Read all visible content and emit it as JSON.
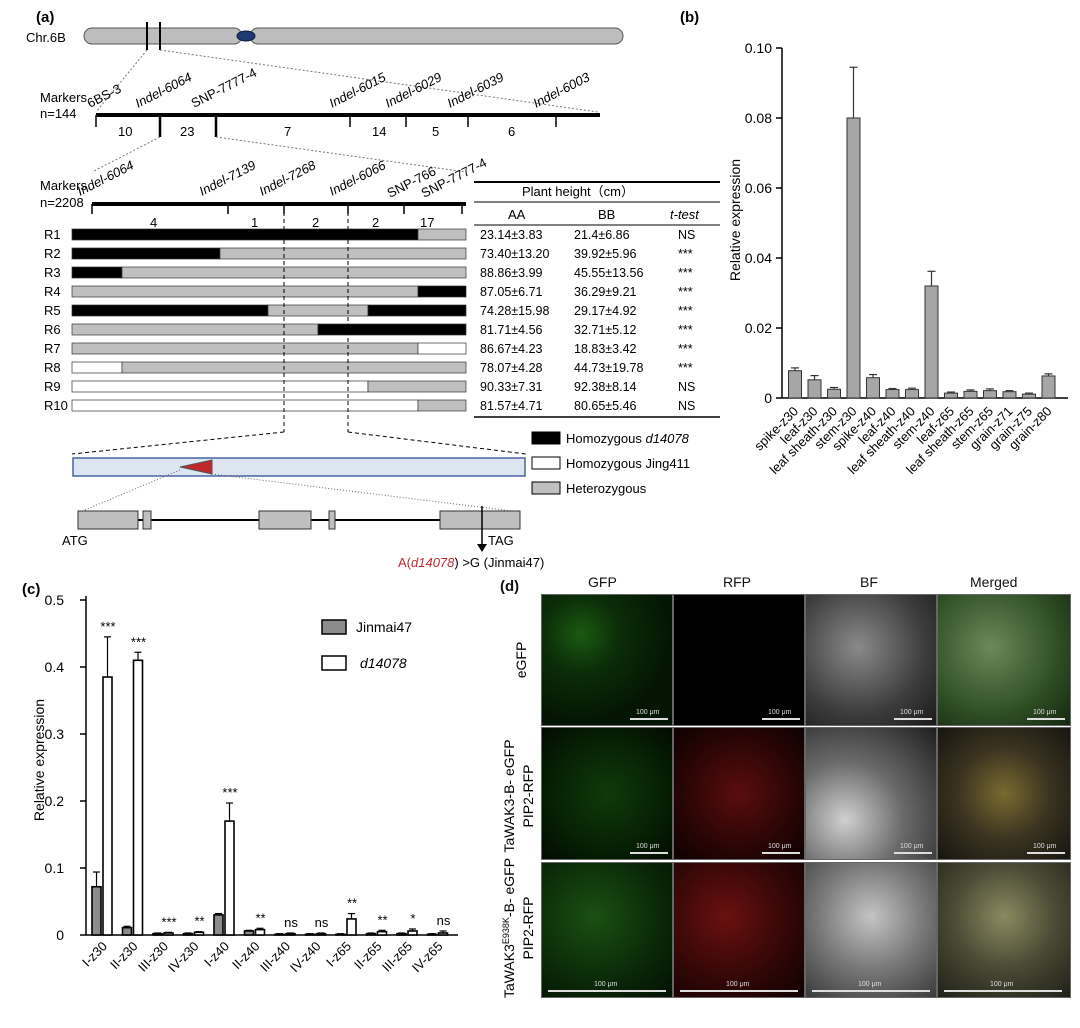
{
  "panel_a": {
    "label": "(a)",
    "chromosome": "Chr.6B",
    "map1": {
      "title": "Markers",
      "n": "n=144",
      "markers": [
        "6BS-3",
        "Indel-6064",
        "SNP-7777-4",
        "Indel-6015",
        "Indel-6029",
        "Indel-6039",
        "Indel-6003"
      ],
      "intervals": [
        "10",
        "23",
        "7",
        "14",
        "5",
        "6"
      ]
    },
    "map2": {
      "title": "Markers",
      "n": "n=2208",
      "markers": [
        "Indel-6064",
        "Indel-7139",
        "Indel-7268",
        "Indel-6066",
        "SNP-766",
        "SNP-7777-4"
      ],
      "intervals": [
        "4",
        "1",
        "2",
        "2",
        "17"
      ]
    },
    "table": {
      "title": "Plant height（cm）",
      "headers": [
        "AA",
        "BB",
        "t-test"
      ],
      "rows": [
        {
          "id": "R1",
          "aa": "23.14±3.83",
          "bb": "21.4±6.86",
          "t": "NS"
        },
        {
          "id": "R2",
          "aa": "73.40±13.20",
          "bb": "39.92±5.96",
          "t": "***"
        },
        {
          "id": "R3",
          "aa": "88.86±3.99",
          "bb": "45.55±13.56",
          "t": "***"
        },
        {
          "id": "R4",
          "aa": "87.05±6.71",
          "bb": "36.29±9.21",
          "t": "***"
        },
        {
          "id": "R5",
          "aa": "74.28±15.98",
          "bb": "29.17±4.92",
          "t": "***"
        },
        {
          "id": "R6",
          "aa": "81.71±4.56",
          "bb": "32.71±5.12",
          "t": "***"
        },
        {
          "id": "R7",
          "aa": "86.67±4.23",
          "bb": "18.83±3.42",
          "t": "***"
        },
        {
          "id": "R8",
          "aa": "78.07±4.28",
          "bb": "44.73±19.78",
          "t": "***"
        },
        {
          "id": "R9",
          "aa": "90.33±7.31",
          "bb": "92.38±8.14",
          "t": "NS"
        },
        {
          "id": "R10",
          "aa": "81.57±4.71",
          "bb": "80.65±5.46",
          "t": "NS"
        }
      ]
    },
    "legend": [
      "Homozygous ",
      "d14078",
      "Homozygous Jing411",
      "Heterozygous"
    ],
    "gene": {
      "atg": "ATG",
      "tag": "TAG",
      "mut_a": "A(",
      "mut_name": "d14078",
      "mut_rest": ") >G (Jinmai47)"
    },
    "colors": {
      "homozygous_d14078": "#000000",
      "homozygous_jing411": "#ffffff",
      "heterozygous": "#bfbfbf",
      "mutation": "#c0282d"
    }
  },
  "panel_b": {
    "label": "(b)"
  },
  "panel_c": {
    "label": "(c)",
    "legend": [
      "Jinmai47",
      "d14078"
    ],
    "significance": [
      "***",
      "***",
      "***",
      "**",
      "***",
      "**",
      "ns",
      "ns",
      "**",
      "**",
      "*",
      "ns"
    ]
  },
  "panel_d": {
    "label": "(d)",
    "columns": [
      "GFP",
      "RFP",
      "BF",
      "Merged"
    ],
    "rows": [
      "eGFP",
      "TaWAK3-B- eGFP",
      "PIP2-RFP",
      "TaWAK3",
      "E938K",
      "-B- eGFP",
      "PIP2-RFP"
    ],
    "scale_bar": "100 μm"
  },
  "chart_data": [
    {
      "type": "bar",
      "panel": "b",
      "categories": [
        "spike-z30",
        "leaf-z30",
        "leaf sheath-z30",
        "stem-z30",
        "spike-z40",
        "leaf-z40",
        "leaf sheath-z40",
        "stem-z40",
        "leaf-z65",
        "leaf sheath-z65",
        "stem-z65",
        "grain-z71",
        "grain-z75",
        "grain-z80"
      ],
      "values": [
        0.0078,
        0.0052,
        0.0025,
        0.08,
        0.0058,
        0.0024,
        0.0024,
        0.032,
        0.0014,
        0.0019,
        0.0021,
        0.0018,
        0.0011,
        0.0063
      ],
      "errors": [
        0.0008,
        0.0012,
        0.0005,
        0.0145,
        0.0009,
        0.0003,
        0.0004,
        0.0042,
        0.0003,
        0.0004,
        0.0005,
        0.0003,
        0.0003,
        0.0006
      ],
      "ylabel": "Relative expression",
      "ylim": [
        0,
        0.1
      ],
      "yticks": [
        "0",
        "0.02",
        "0.04",
        "0.06",
        "0.08",
        "0.10"
      ],
      "colors": {
        "bar": "#a6a6a6"
      }
    },
    {
      "type": "bar",
      "panel": "c",
      "categories": [
        "I-z30",
        "II-z30",
        "III-z30",
        "IV-z30",
        "I-z40",
        "II-z40",
        "III-z40",
        "IV-z40",
        "I-z65",
        "II-z65",
        "III-z65",
        "IV-z65"
      ],
      "series": [
        {
          "name": "Jinmai47",
          "values": [
            0.072,
            0.011,
            0.002,
            0.002,
            0.03,
            0.006,
            0.001,
            0.001,
            0.001,
            0.002,
            0.002,
            0.001
          ],
          "errors": [
            0.022,
            0.002,
            0.001,
            0.001,
            0.002,
            0.001,
            0.001,
            0.001,
            0.001,
            0.001,
            0.001,
            0.001
          ],
          "color": "#8c8c8c"
        },
        {
          "name": "d14078",
          "values": [
            0.385,
            0.41,
            0.003,
            0.004,
            0.17,
            0.008,
            0.002,
            0.002,
            0.024,
            0.005,
            0.006,
            0.003
          ],
          "errors": [
            0.06,
            0.012,
            0.001,
            0.001,
            0.027,
            0.002,
            0.001,
            0.001,
            0.008,
            0.002,
            0.003,
            0.003
          ],
          "color": "#ffffff"
        }
      ],
      "ylabel": "Relative expression",
      "ylim": [
        0,
        0.5
      ],
      "yticks": [
        "0",
        "0.1",
        "0.2",
        "0.3",
        "0.4",
        "0.5"
      ]
    }
  ]
}
